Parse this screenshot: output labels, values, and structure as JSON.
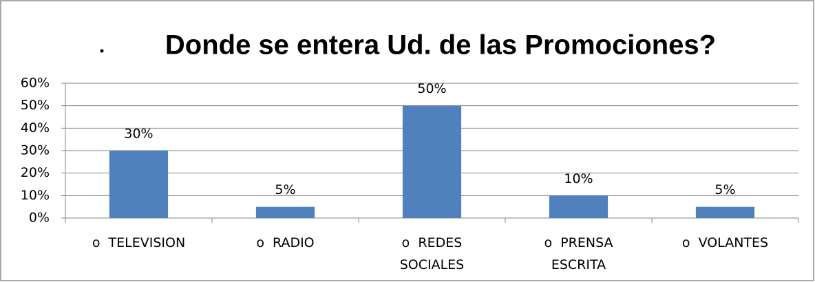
{
  "chart_data": {
    "type": "bar",
    "title": "Donde se entera Ud. de las Promociones?",
    "categories": [
      "o  TELEVISION",
      "o  RADIO",
      "o  REDES SOCIALES",
      "o  PRENSA ESCRITA",
      "o  VOLANTES"
    ],
    "values": [
      30,
      5,
      50,
      10,
      5
    ],
    "value_labels": [
      "30%",
      "5%",
      "50%",
      "10%",
      "5%"
    ],
    "color": "#4f81bd",
    "ylim": [
      0,
      60
    ],
    "yticks": [
      {
        "value": 0,
        "label": "0%"
      },
      {
        "value": 10,
        "label": "10%"
      },
      {
        "value": 20,
        "label": "20%"
      },
      {
        "value": 30,
        "label": "30%"
      },
      {
        "value": 40,
        "label": "40%"
      },
      {
        "value": 50,
        "label": "50%"
      },
      {
        "value": 60,
        "label": "60%"
      }
    ],
    "grid": true
  }
}
